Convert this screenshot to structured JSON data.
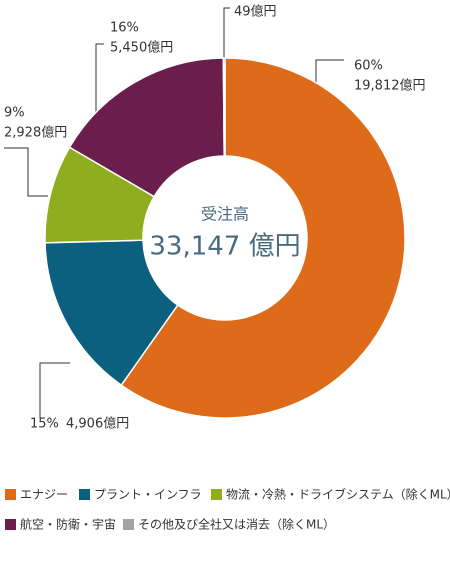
{
  "chart_data": {
    "type": "donut",
    "center_label": "受注高",
    "total_label": "33,147 億円",
    "categories": [
      "エナジー",
      "プラント・インフラ",
      "物流・冷熱・ドライブシステム（除くML）",
      "航空・防衛・宇宙",
      "その他及び全社又は消去（除くML）"
    ],
    "values": [
      19812,
      4906,
      2928,
      5450,
      49
    ],
    "value_labels": [
      "19,812億円",
      "4,906億円",
      "2,928億円",
      "5,450億円",
      "49億円"
    ],
    "percent_labels": [
      "60%",
      "15%",
      "9%",
      "16%",
      null
    ],
    "colors": [
      "#dd6b1a",
      "#0b5f7f",
      "#8fae1f",
      "#6b1d4b",
      "#a3a3a3"
    ]
  }
}
